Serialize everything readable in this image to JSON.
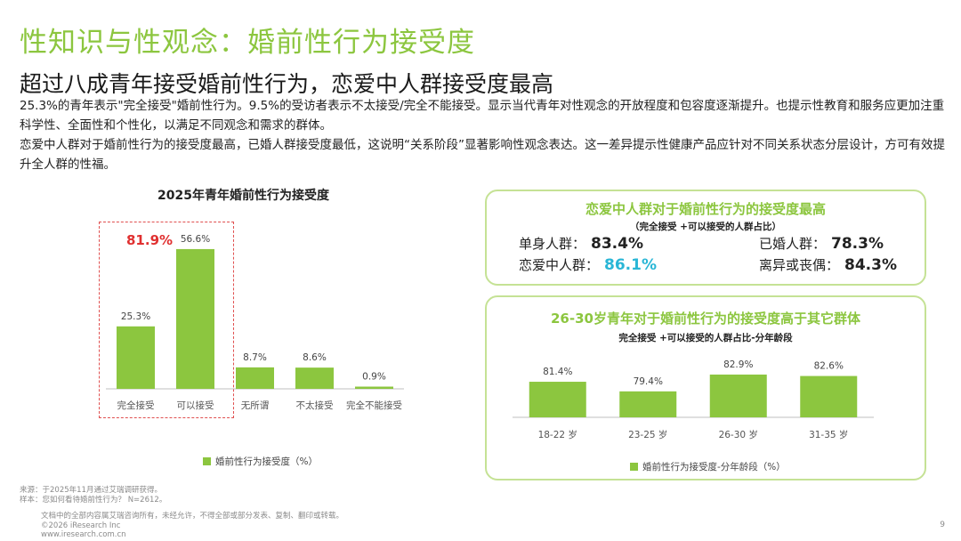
{
  "header": {
    "title": "性知识与性观念：婚前性行为接受度",
    "subtitle": "超过八成青年接受婚前性行为，恋爱中人群接受度最高",
    "paragraph1": "25.3%的青年表示\"完全接受\"婚前性行为。9.5%的受访者表示不太接受/完全不能接受。显示当代青年对性观念的开放程度和包容度逐渐提升。也提示性教育和服务应更加注重科学性、全面性和个性化，以满足不同观念和需求的群体。",
    "paragraph2": "恋爱中人群对于婚前性行为的接受度最高，已婚人群接受度最低，这说明“关系阶段”显著影响性观念表达。这一差异提示性健康产品应针对不同关系状态分层设计，方可有效提升全人群的性福。"
  },
  "chart_data": [
    {
      "type": "bar",
      "title": "2025年青年婚前性行为接受度",
      "categories": [
        "完全接受",
        "可以接受",
        "无所谓",
        "不太接受",
        "完全不能接受"
      ],
      "values": [
        25.3,
        56.6,
        8.7,
        8.6,
        0.9
      ],
      "value_labels": [
        "25.3%",
        "56.6%",
        "8.7%",
        "8.6%",
        "0.9%"
      ],
      "series": [
        {
          "name": "婚前性行为接受度（%）",
          "values": [
            25.3,
            56.6,
            8.7,
            8.6,
            0.9
          ]
        }
      ],
      "highlight_total": "81.9%",
      "ylim": [
        0,
        60
      ],
      "legend": "婚前性行为接受度（%）",
      "legend_position": "bottom",
      "color": "#8cc63f"
    },
    {
      "type": "bar",
      "title": "26-30岁青年对于婚前性行为的接受度高于其它群体",
      "subtitle": "完全接受 +可以接受的人群占比-分年龄段",
      "categories": [
        "18-22 岁",
        "23-25 岁",
        "26-30 岁",
        "31-35 岁"
      ],
      "values": [
        81.4,
        79.4,
        82.9,
        82.6
      ],
      "value_labels": [
        "81.4%",
        "79.4%",
        "82.9%",
        "82.6%"
      ],
      "series": [
        {
          "name": "婚前性行为接受度-分年龄段（%）",
          "values": [
            81.4,
            79.4,
            82.9,
            82.6
          ]
        }
      ],
      "ylim": [
        74,
        84
      ],
      "legend": "婚前性行为接受度-分年龄段（%）",
      "legend_position": "bottom",
      "color": "#8cc63f"
    }
  ],
  "relationship_card": {
    "title": "恋爱中人群对于婚前性行为的接受度最高",
    "subtitle": "（完全接受 +可以接受的人群占比）",
    "stats": [
      {
        "label": "单身人群：",
        "value": "83.4%"
      },
      {
        "label": "已婚人群：",
        "value": "78.3%"
      },
      {
        "label": "恋爱中人群：",
        "value": "86.1%"
      },
      {
        "label": "离异或丧偶：",
        "value": "84.3%"
      }
    ],
    "highlight_color": "#29b6d6"
  },
  "footer": {
    "source": "来源：于2025年11月通过艾瑞调研获得。",
    "sample": "样本：您如何看待婚前性行为？ N=2612。",
    "copyright_note": "文档中的全部内容属艾瑞咨询所有，未经允许，不得全部或部分发表、复制、翻印或转载。",
    "copyright": "©2026 iResearch Inc",
    "website": "www.iresearch.com.cn",
    "page": "9"
  },
  "colors": {
    "accent": "#8cc63f",
    "highlight_red": "#e03030",
    "highlight_blue": "#29b6d6"
  }
}
